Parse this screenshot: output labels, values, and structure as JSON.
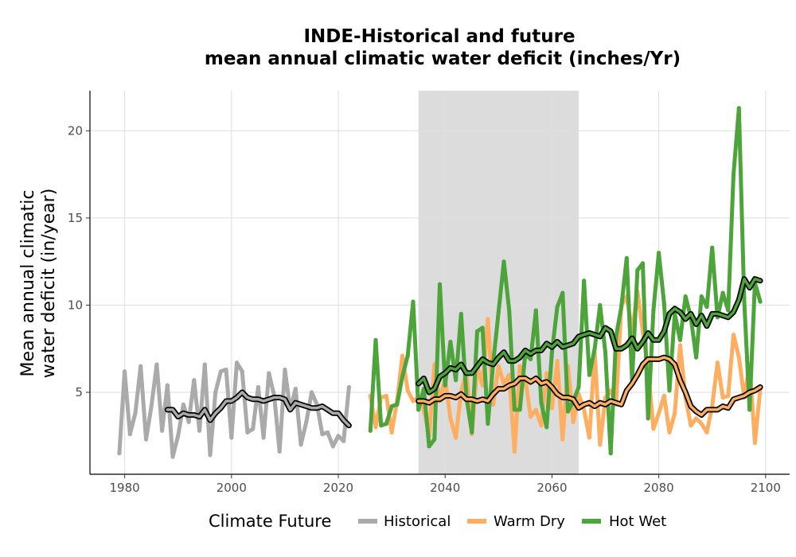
{
  "chart_data": {
    "type": "line",
    "title_line1": "INDE-Historical and future",
    "title_line2": "mean annual climatic water deficit (inches/Yr)",
    "ylabel_line1": "Mean annual climatic",
    "ylabel_line2": "water deficit (in/year)",
    "xlabel": "",
    "xlim": [
      1973.5,
      2104.5
    ],
    "ylim": [
      0.3,
      22.3
    ],
    "x_ticks": [
      "1980",
      "2000",
      "2020",
      "2040",
      "2060",
      "2080",
      "2100"
    ],
    "y_ticks": [
      "5",
      "10",
      "15",
      "20"
    ],
    "grid": true,
    "shaded_period": [
      2035,
      2065
    ],
    "legend": {
      "title": "Climate Future",
      "position": "bottom",
      "items": [
        "Historical",
        "Warm Dry",
        "Hot Wet"
      ]
    },
    "colors": {
      "Historical": "#aaaaaa",
      "Warm Dry": "#fdae61",
      "Hot Wet": "#4ca43a",
      "shade": "#dcdcdc",
      "smooth_outline": "#000000"
    },
    "series": [
      {
        "name": "Historical",
        "x": [
          1979,
          1980,
          1981,
          1982,
          1983,
          1984,
          1985,
          1986,
          1987,
          1988,
          1989,
          1990,
          1991,
          1992,
          1993,
          1994,
          1995,
          1996,
          1997,
          1998,
          1999,
          2000,
          2001,
          2002,
          2003,
          2004,
          2005,
          2006,
          2007,
          2008,
          2009,
          2010,
          2011,
          2012,
          2013,
          2014,
          2015,
          2016,
          2017,
          2018,
          2019,
          2020,
          2021,
          2022
        ],
        "values": [
          1.5,
          6.2,
          2.6,
          3.8,
          6.5,
          2.3,
          4.2,
          6.6,
          2.8,
          5.4,
          1.3,
          2.5,
          4.3,
          3.3,
          5.7,
          2.8,
          6.6,
          1.4,
          5.0,
          6.2,
          6.3,
          2.4,
          6.7,
          6.2,
          2.7,
          2.9,
          5.3,
          2.4,
          6.1,
          4.8,
          1.6,
          6.3,
          4.0,
          5.2,
          2.0,
          3.3,
          5.0,
          4.3,
          2.6,
          2.7,
          1.9,
          2.5,
          2.2,
          5.3
        ]
      },
      {
        "name": "Historical (smoothed)",
        "x": [
          1988,
          1989,
          1990,
          1991,
          1992,
          1993,
          1994,
          1995,
          1996,
          1997,
          1998,
          1999,
          2000,
          2001,
          2002,
          2003,
          2004,
          2005,
          2006,
          2007,
          2008,
          2009,
          2010,
          2011,
          2012,
          2013,
          2014,
          2015,
          2016,
          2017,
          2018,
          2019,
          2020,
          2021,
          2022
        ],
        "values": [
          4.0,
          4.0,
          3.6,
          3.8,
          3.7,
          3.7,
          3.6,
          4.0,
          3.4,
          3.8,
          4.1,
          4.5,
          4.5,
          4.7,
          5.0,
          4.7,
          4.6,
          4.6,
          4.5,
          4.6,
          4.7,
          4.7,
          4.6,
          4.0,
          4.4,
          4.3,
          4.2,
          4.1,
          4.1,
          4.2,
          4.0,
          3.8,
          3.8,
          3.4,
          3.1
        ]
      },
      {
        "name": "Warm Dry",
        "x": [
          2026,
          2027,
          2028,
          2029,
          2030,
          2031,
          2032,
          2033,
          2034,
          2035,
          2036,
          2037,
          2038,
          2039,
          2040,
          2041,
          2042,
          2043,
          2044,
          2045,
          2046,
          2047,
          2048,
          2049,
          2050,
          2051,
          2052,
          2053,
          2054,
          2055,
          2056,
          2057,
          2058,
          2059,
          2060,
          2061,
          2062,
          2063,
          2064,
          2065,
          2066,
          2067,
          2068,
          2069,
          2070,
          2071,
          2072,
          2073,
          2074,
          2075,
          2076,
          2077,
          2078,
          2079,
          2080,
          2081,
          2082,
          2083,
          2084,
          2085,
          2086,
          2087,
          2088,
          2089,
          2090,
          2091,
          2092,
          2093,
          2094,
          2095,
          2096,
          2097,
          2098,
          2099
        ],
        "values": [
          4.8,
          3.0,
          4.7,
          4.8,
          2.7,
          4.5,
          7.1,
          5.1,
          4.5,
          4.7,
          4.0,
          2.5,
          6.6,
          4.5,
          5.8,
          3.5,
          2.4,
          5.0,
          6.2,
          2.6,
          6.5,
          5.4,
          9.2,
          4.3,
          6.5,
          5.5,
          6.0,
          1.6,
          6.5,
          5.8,
          3.6,
          4.0,
          3.1,
          6.1,
          4.1,
          6.8,
          2.3,
          6.5,
          3.3,
          4.9,
          4.0,
          2.4,
          7.3,
          2.0,
          4.7,
          5.1,
          4.3,
          10.0,
          10.5,
          8.5,
          10.8,
          8.5,
          6.3,
          2.9,
          3.8,
          4.8,
          2.7,
          3.8,
          7.7,
          4.7,
          3.1,
          3.5,
          3.2,
          2.7,
          4.2,
          6.7,
          4.7,
          4.8,
          8.3,
          7.0,
          4.7,
          6.6,
          2.1,
          5.2
        ]
      },
      {
        "name": "Warm Dry (smoothed)",
        "x": [
          2035,
          2036,
          2037,
          2038,
          2039,
          2040,
          2041,
          2042,
          2043,
          2044,
          2045,
          2046,
          2047,
          2048,
          2049,
          2050,
          2051,
          2052,
          2053,
          2054,
          2055,
          2056,
          2057,
          2058,
          2059,
          2060,
          2061,
          2062,
          2063,
          2064,
          2065,
          2066,
          2067,
          2068,
          2069,
          2070,
          2071,
          2072,
          2073,
          2074,
          2075,
          2076,
          2077,
          2078,
          2079,
          2080,
          2081,
          2082,
          2083,
          2084,
          2085,
          2086,
          2087,
          2088,
          2089,
          2090,
          2091,
          2092,
          2093,
          2094,
          2095,
          2096,
          2097,
          2098,
          2099
        ],
        "values": [
          4.5,
          4.5,
          4.4,
          4.6,
          4.6,
          4.8,
          4.8,
          4.7,
          4.9,
          4.6,
          4.6,
          4.5,
          4.6,
          4.5,
          4.9,
          5.2,
          5.2,
          5.4,
          5.5,
          5.8,
          5.8,
          5.6,
          5.8,
          5.5,
          5.6,
          5.3,
          4.9,
          4.7,
          4.7,
          4.6,
          4.1,
          4.3,
          4.4,
          4.2,
          4.4,
          4.3,
          4.5,
          4.4,
          4.3,
          5.1,
          5.5,
          6.0,
          6.6,
          6.9,
          6.9,
          6.9,
          7.0,
          6.9,
          6.6,
          5.7,
          5.0,
          4.2,
          3.9,
          3.7,
          4.0,
          4.0,
          4.0,
          4.2,
          4.1,
          4.6,
          4.7,
          4.8,
          5.0,
          5.1,
          5.3
        ]
      },
      {
        "name": "Hot Wet",
        "x": [
          2026,
          2027,
          2028,
          2029,
          2030,
          2031,
          2032,
          2033,
          2034,
          2035,
          2036,
          2037,
          2038,
          2039,
          2040,
          2041,
          2042,
          2043,
          2044,
          2045,
          2046,
          2047,
          2048,
          2049,
          2050,
          2051,
          2052,
          2053,
          2054,
          2055,
          2056,
          2057,
          2058,
          2059,
          2060,
          2061,
          2062,
          2063,
          2064,
          2065,
          2066,
          2067,
          2068,
          2069,
          2070,
          2071,
          2072,
          2073,
          2074,
          2075,
          2076,
          2077,
          2078,
          2079,
          2080,
          2081,
          2082,
          2083,
          2084,
          2085,
          2086,
          2087,
          2088,
          2089,
          2090,
          2091,
          2092,
          2093,
          2094,
          2095,
          2096,
          2097,
          2098,
          2099
        ],
        "values": [
          2.8,
          8.0,
          3.1,
          3.2,
          4.2,
          4.3,
          5.9,
          7.1,
          10.2,
          4.0,
          5.2,
          1.9,
          2.3,
          11.2,
          5.4,
          7.9,
          5.7,
          9.5,
          4.7,
          2.7,
          8.5,
          8.7,
          3.2,
          6.7,
          9.6,
          12.5,
          9.7,
          4.0,
          4.0,
          7.2,
          6.9,
          9.7,
          4.4,
          3.0,
          7.3,
          9.9,
          10.7,
          3.9,
          4.5,
          5.3,
          11.4,
          6.0,
          7.5,
          10.0,
          7.3,
          1.5,
          8.2,
          9.9,
          12.7,
          5.7,
          12.0,
          12.4,
          3.5,
          9.7,
          13.0,
          10.1,
          5.1,
          9.5,
          8.0,
          10.5,
          9.3,
          7.0,
          10.5,
          9.9,
          13.3,
          9.3,
          10.7,
          9.7,
          17.5,
          21.3,
          10.2,
          4.0,
          11.3,
          10.2
        ]
      },
      {
        "name": "Hot Wet (smoothed)",
        "x": [
          2035,
          2036,
          2037,
          2038,
          2039,
          2040,
          2041,
          2042,
          2043,
          2044,
          2045,
          2046,
          2047,
          2048,
          2049,
          2050,
          2051,
          2052,
          2053,
          2054,
          2055,
          2056,
          2057,
          2058,
          2059,
          2060,
          2061,
          2062,
          2063,
          2064,
          2065,
          2066,
          2067,
          2068,
          2069,
          2070,
          2071,
          2072,
          2073,
          2074,
          2075,
          2076,
          2077,
          2078,
          2079,
          2080,
          2081,
          2082,
          2083,
          2084,
          2085,
          2086,
          2087,
          2088,
          2089,
          2090,
          2091,
          2092,
          2093,
          2094,
          2095,
          2096,
          2097,
          2098,
          2099
        ],
        "values": [
          5.5,
          5.8,
          5.0,
          5.2,
          5.9,
          6.1,
          6.4,
          6.3,
          6.6,
          6.1,
          6.1,
          6.5,
          6.9,
          6.7,
          6.6,
          7.0,
          7.3,
          6.8,
          6.8,
          7.0,
          7.4,
          7.2,
          7.4,
          7.4,
          7.8,
          7.6,
          7.9,
          7.6,
          7.7,
          7.8,
          8.2,
          8.3,
          8.4,
          8.3,
          8.2,
          8.7,
          8.5,
          7.5,
          7.5,
          7.7,
          8.1,
          7.5,
          7.9,
          8.4,
          8.0,
          8.0,
          8.5,
          9.5,
          9.8,
          9.6,
          9.2,
          9.5,
          8.9,
          9.4,
          8.8,
          9.5,
          9.5,
          9.4,
          9.3,
          9.6,
          10.3,
          11.5,
          11.0,
          11.5,
          11.4
        ]
      }
    ]
  }
}
